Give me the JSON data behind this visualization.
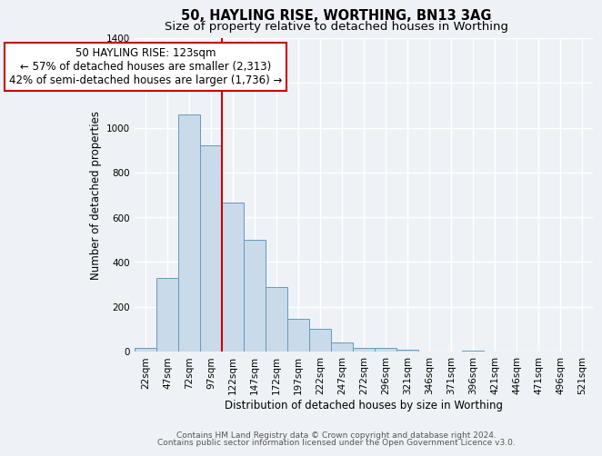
{
  "title": "50, HAYLING RISE, WORTHING, BN13 3AG",
  "subtitle": "Size of property relative to detached houses in Worthing",
  "xlabel": "Distribution of detached houses by size in Worthing",
  "ylabel": "Number of detached properties",
  "categories": [
    "22sqm",
    "47sqm",
    "72sqm",
    "97sqm",
    "122sqm",
    "147sqm",
    "172sqm",
    "197sqm",
    "222sqm",
    "247sqm",
    "272sqm",
    "296sqm",
    "321sqm",
    "346sqm",
    "371sqm",
    "396sqm",
    "421sqm",
    "446sqm",
    "471sqm",
    "496sqm",
    "521sqm"
  ],
  "values": [
    18,
    330,
    1060,
    920,
    665,
    500,
    290,
    148,
    100,
    40,
    18,
    18,
    10,
    0,
    0,
    5,
    0,
    0,
    0,
    0,
    0
  ],
  "bar_color": "#c9daea",
  "bar_edge_color": "#6699bb",
  "bar_width": 1.0,
  "property_line_x": 4.0,
  "property_line_color": "#cc0000",
  "annotation_line1": "50 HAYLING RISE: 123sqm",
  "annotation_line2": "← 57% of detached houses are smaller (2,313)",
  "annotation_line3": "42% of semi-detached houses are larger (1,736) →",
  "annotation_box_color": "#ffffff",
  "annotation_box_edge": "#cc0000",
  "ylim": [
    0,
    1400
  ],
  "yticks": [
    0,
    200,
    400,
    600,
    800,
    1000,
    1200,
    1400
  ],
  "footer1": "Contains HM Land Registry data © Crown copyright and database right 2024.",
  "footer2": "Contains public sector information licensed under the Open Government Licence v3.0.",
  "background_color": "#eef2f7",
  "plot_bg_color": "#eef2f7",
  "grid_color": "#ffffff",
  "title_fontsize": 10.5,
  "subtitle_fontsize": 9.5,
  "axis_label_fontsize": 8.5,
  "tick_fontsize": 7.5,
  "annotation_fontsize": 8.5,
  "footer_fontsize": 6.5
}
